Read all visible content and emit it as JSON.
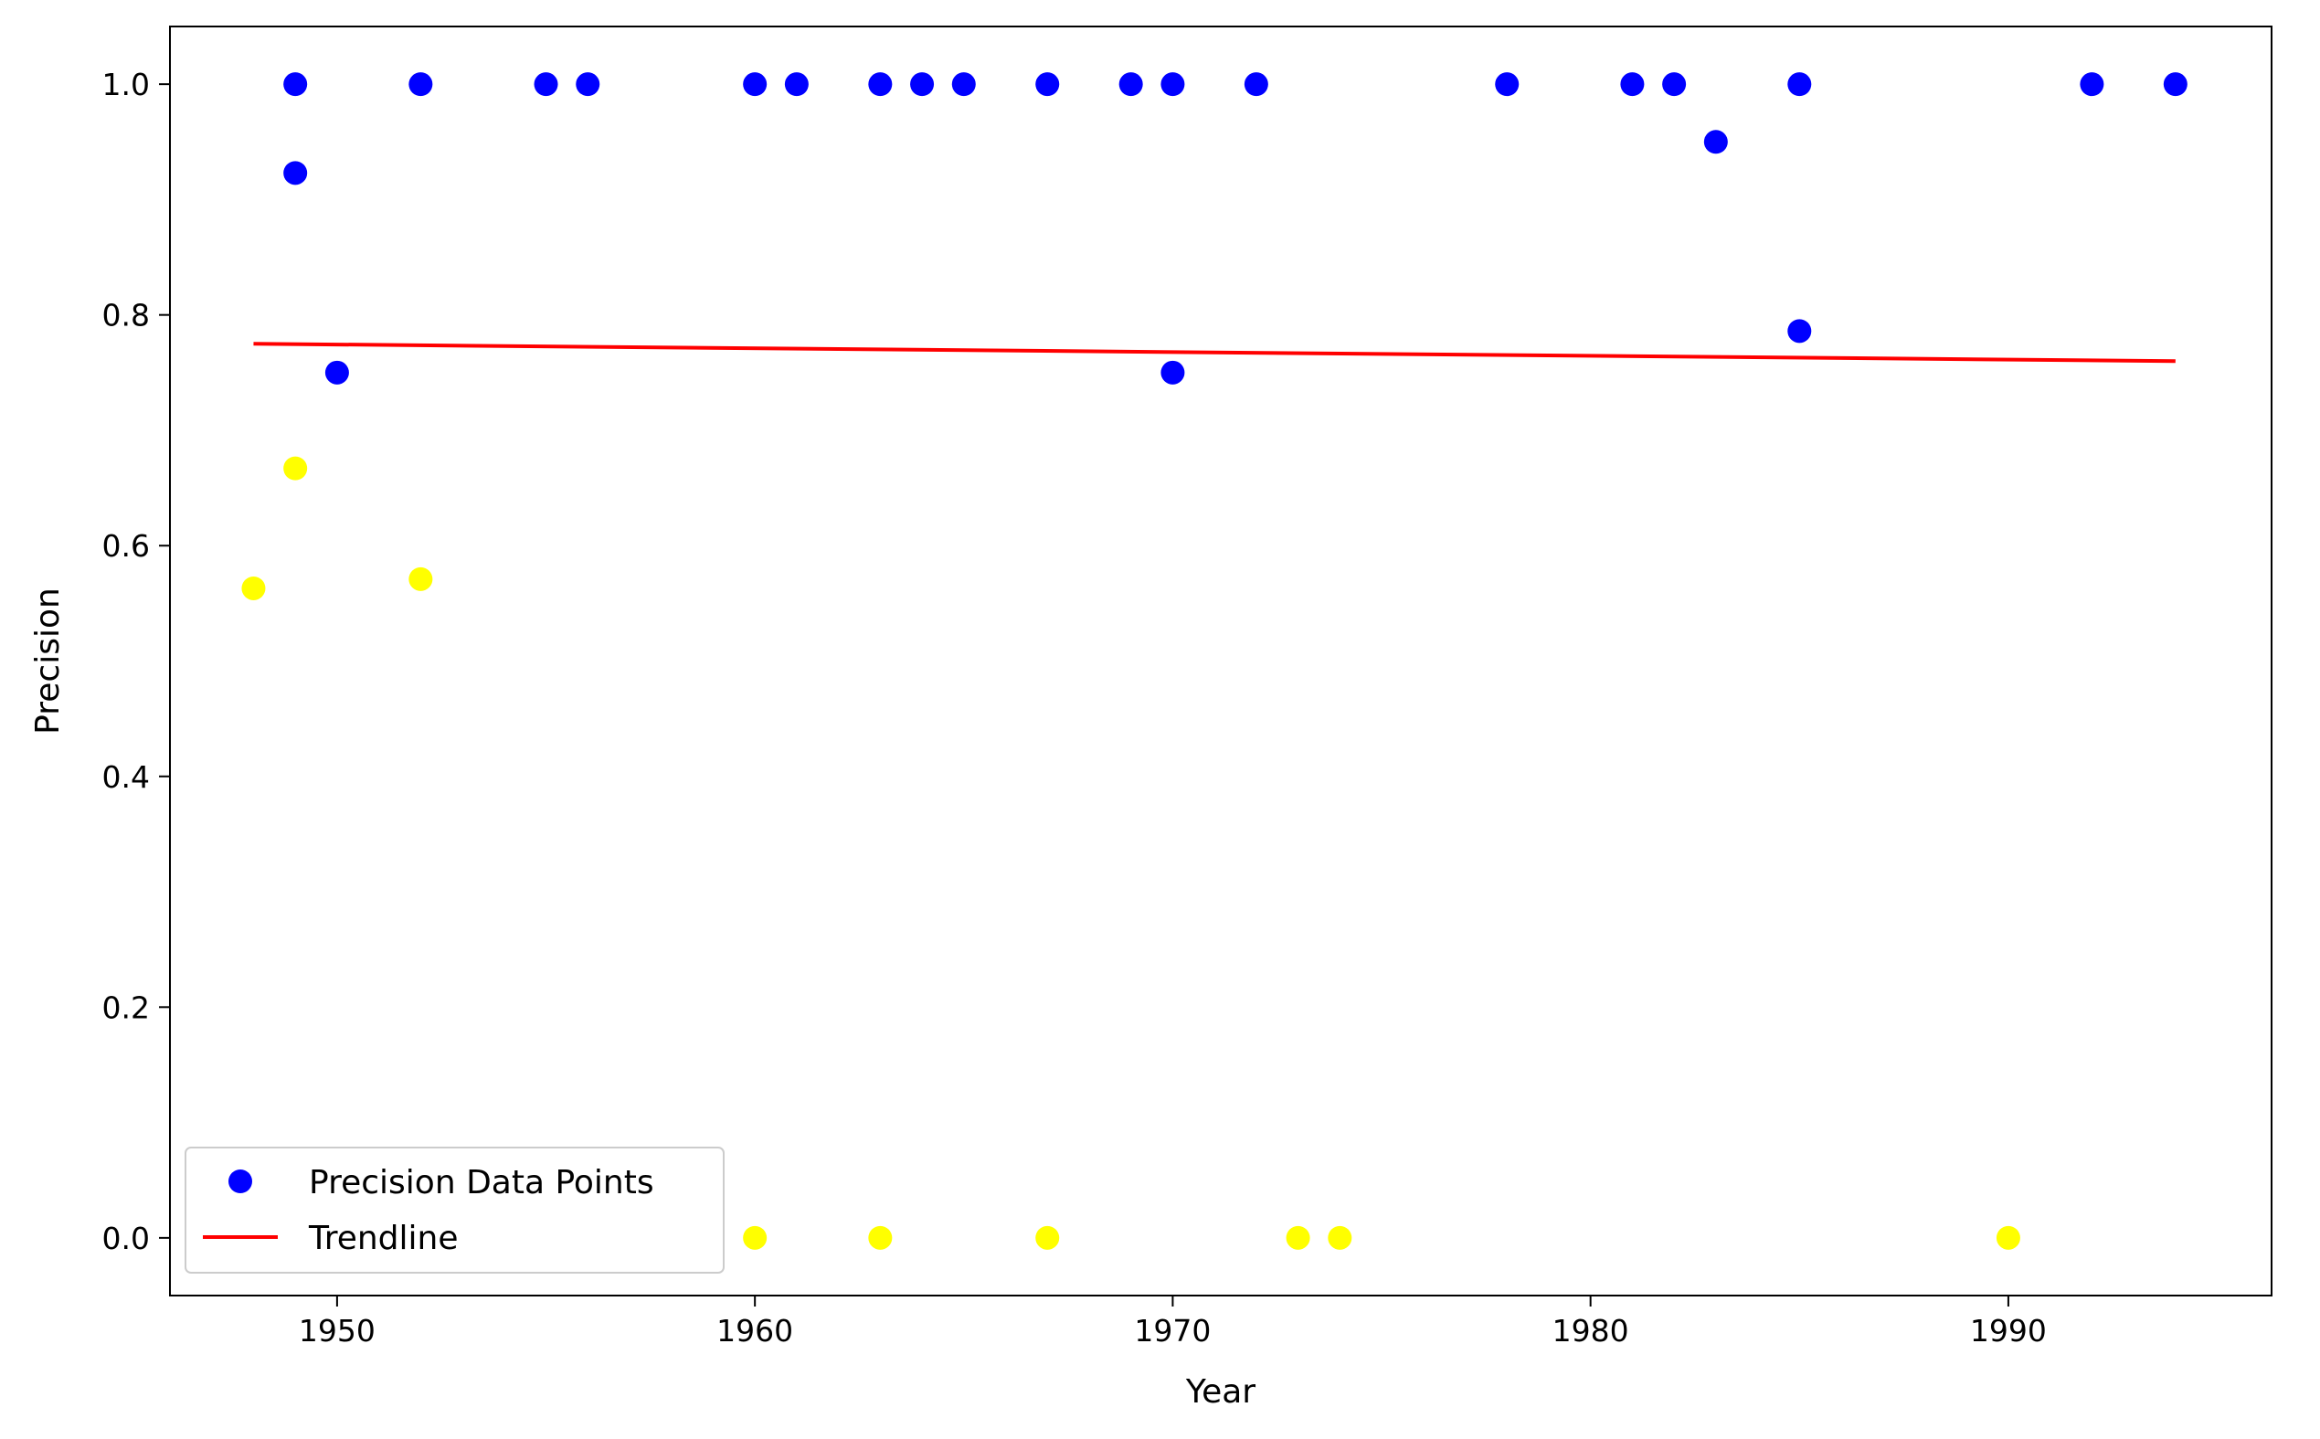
{
  "chart_data": {
    "type": "scatter",
    "xlabel": "Year",
    "ylabel": "Precision",
    "xlim": [
      1946,
      1996.3
    ],
    "ylim": [
      -0.05,
      1.05
    ],
    "xticks": [
      1950,
      1960,
      1970,
      1980,
      1990
    ],
    "yticks": [
      0.0,
      0.2,
      0.4,
      0.6,
      0.8,
      1.0
    ],
    "xtick_labels": [
      "1950",
      "1960",
      "1970",
      "1980",
      "1990"
    ],
    "ytick_labels": [
      "0.0",
      "0.2",
      "0.4",
      "0.6",
      "0.8",
      "1.0"
    ],
    "grid": false,
    "legend_position": "lower-left",
    "series": [
      {
        "name": "Precision Data Points",
        "kind": "scatter",
        "color": "#0000ff",
        "points": [
          [
            1949,
            1.0
          ],
          [
            1949,
            0.923
          ],
          [
            1950,
            0.75
          ],
          [
            1952,
            1.0
          ],
          [
            1955,
            1.0
          ],
          [
            1956,
            1.0
          ],
          [
            1960,
            1.0
          ],
          [
            1961,
            1.0
          ],
          [
            1963,
            1.0
          ],
          [
            1964,
            1.0
          ],
          [
            1965,
            1.0
          ],
          [
            1967,
            1.0
          ],
          [
            1969,
            1.0
          ],
          [
            1970,
            1.0
          ],
          [
            1970,
            0.75
          ],
          [
            1972,
            1.0
          ],
          [
            1978,
            1.0
          ],
          [
            1981,
            1.0
          ],
          [
            1982,
            1.0
          ],
          [
            1983,
            0.95
          ],
          [
            1985,
            1.0
          ],
          [
            1985,
            0.786
          ],
          [
            1992,
            1.0
          ],
          [
            1994,
            1.0
          ]
        ]
      },
      {
        "name": "",
        "kind": "scatter",
        "color": "#ffff00",
        "points": [
          [
            1948,
            0.563
          ],
          [
            1949,
            0.667
          ],
          [
            1952,
            0.571
          ],
          [
            1960,
            0.0
          ],
          [
            1963,
            0.0
          ],
          [
            1967,
            0.0
          ],
          [
            1973,
            0.0
          ],
          [
            1974,
            0.0
          ],
          [
            1990,
            0.0
          ]
        ]
      },
      {
        "name": "Trendline",
        "kind": "line",
        "color": "#ff0000",
        "points": [
          [
            1948,
            0.775
          ],
          [
            1994,
            0.76
          ]
        ]
      }
    ]
  }
}
